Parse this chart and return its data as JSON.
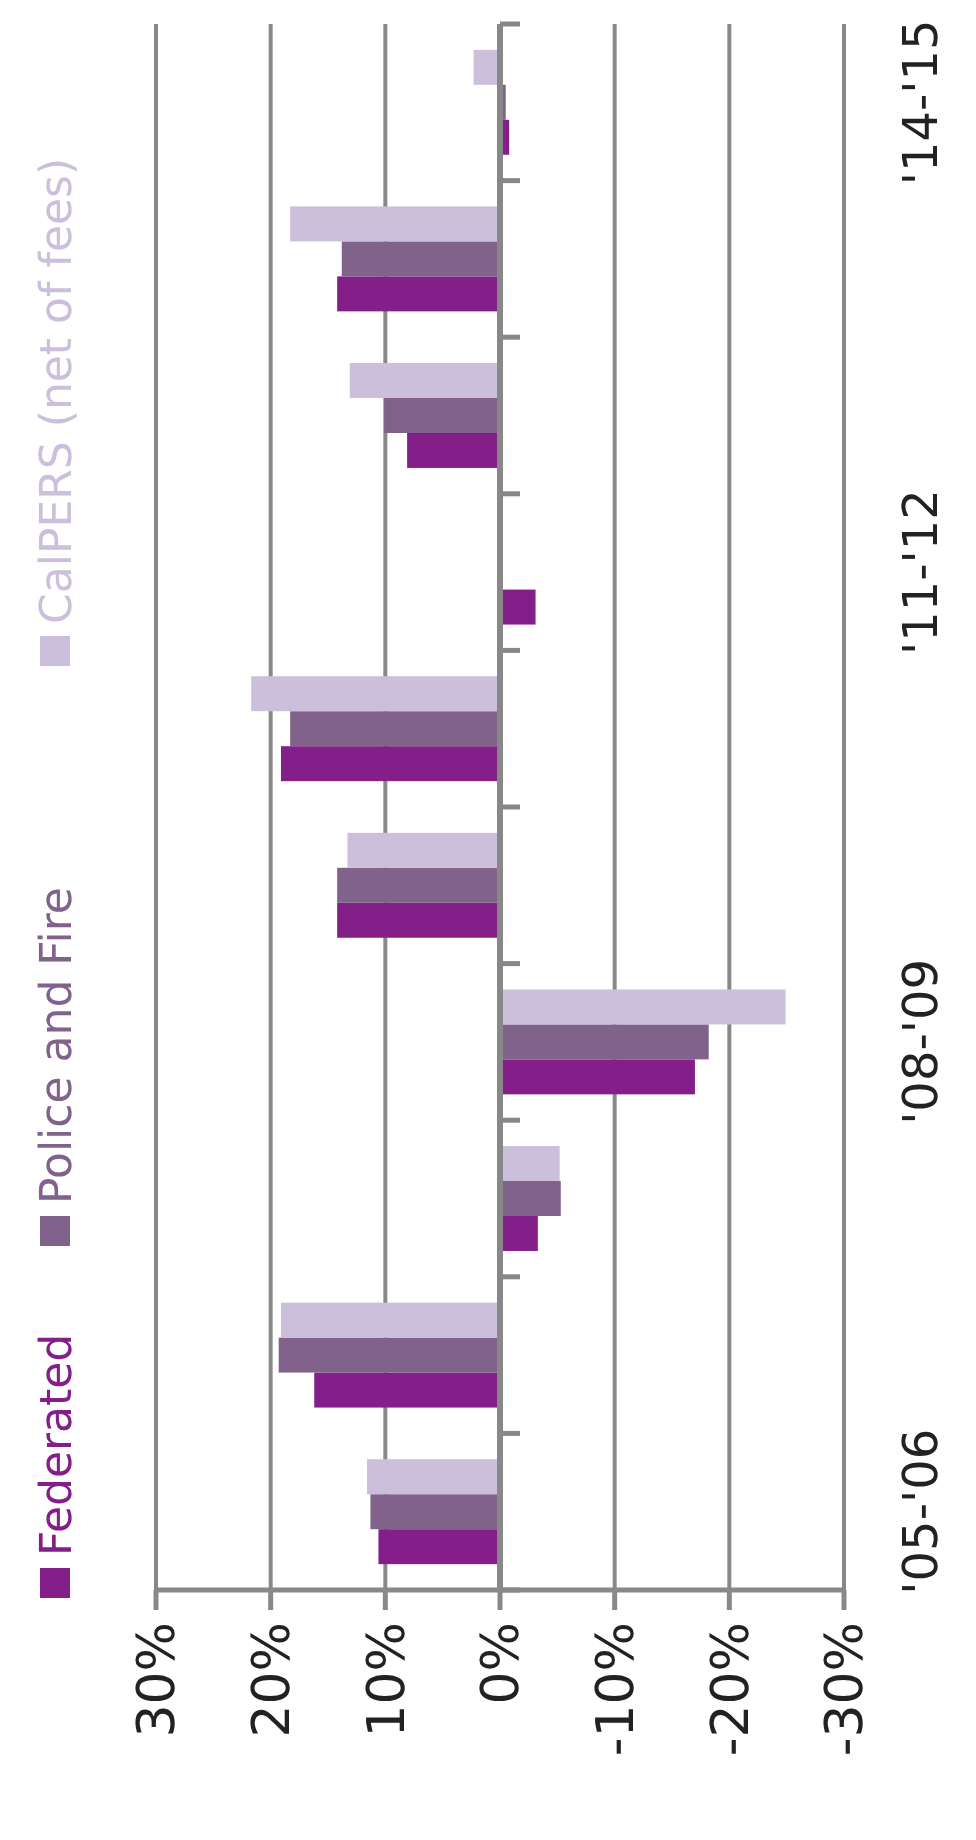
{
  "chart_data": {
    "type": "bar",
    "orientation": "horizontal",
    "categories": [
      "'14-'15",
      null,
      null,
      "'11-'12",
      null,
      null,
      "'08-'09",
      null,
      null,
      "'05-'06"
    ],
    "series": [
      {
        "name": "Federated",
        "color": "#841f8a",
        "values": [
          -0.8,
          14.2,
          8.1,
          -3.1,
          19.1,
          14.2,
          -17.0,
          -3.3,
          16.2,
          10.6
        ]
      },
      {
        "name": "Police and Fire",
        "color": "#80628a",
        "values": [
          -0.5,
          13.8,
          10.1,
          0,
          18.3,
          14.2,
          -18.2,
          -5.3,
          19.3,
          11.3
        ]
      },
      {
        "name": "CalPERS (net of fees)",
        "color": "#cbbfdb",
        "values": [
          2.3,
          18.3,
          13.1,
          0,
          21.7,
          13.3,
          -24.9,
          -5.2,
          19.1,
          11.6
        ]
      }
    ],
    "xlim": [
      30,
      -30
    ],
    "xticks": [
      {
        "value": 30,
        "label": "30%"
      },
      {
        "value": 20,
        "label": "20%"
      },
      {
        "value": 10,
        "label": "10%"
      },
      {
        "value": 0,
        "label": "0%"
      },
      {
        "value": -10,
        "label": "-10%"
      },
      {
        "value": -20,
        "label": "-20%"
      },
      {
        "value": -30,
        "label": "-30%"
      }
    ],
    "grid": "x",
    "legend": "left"
  }
}
